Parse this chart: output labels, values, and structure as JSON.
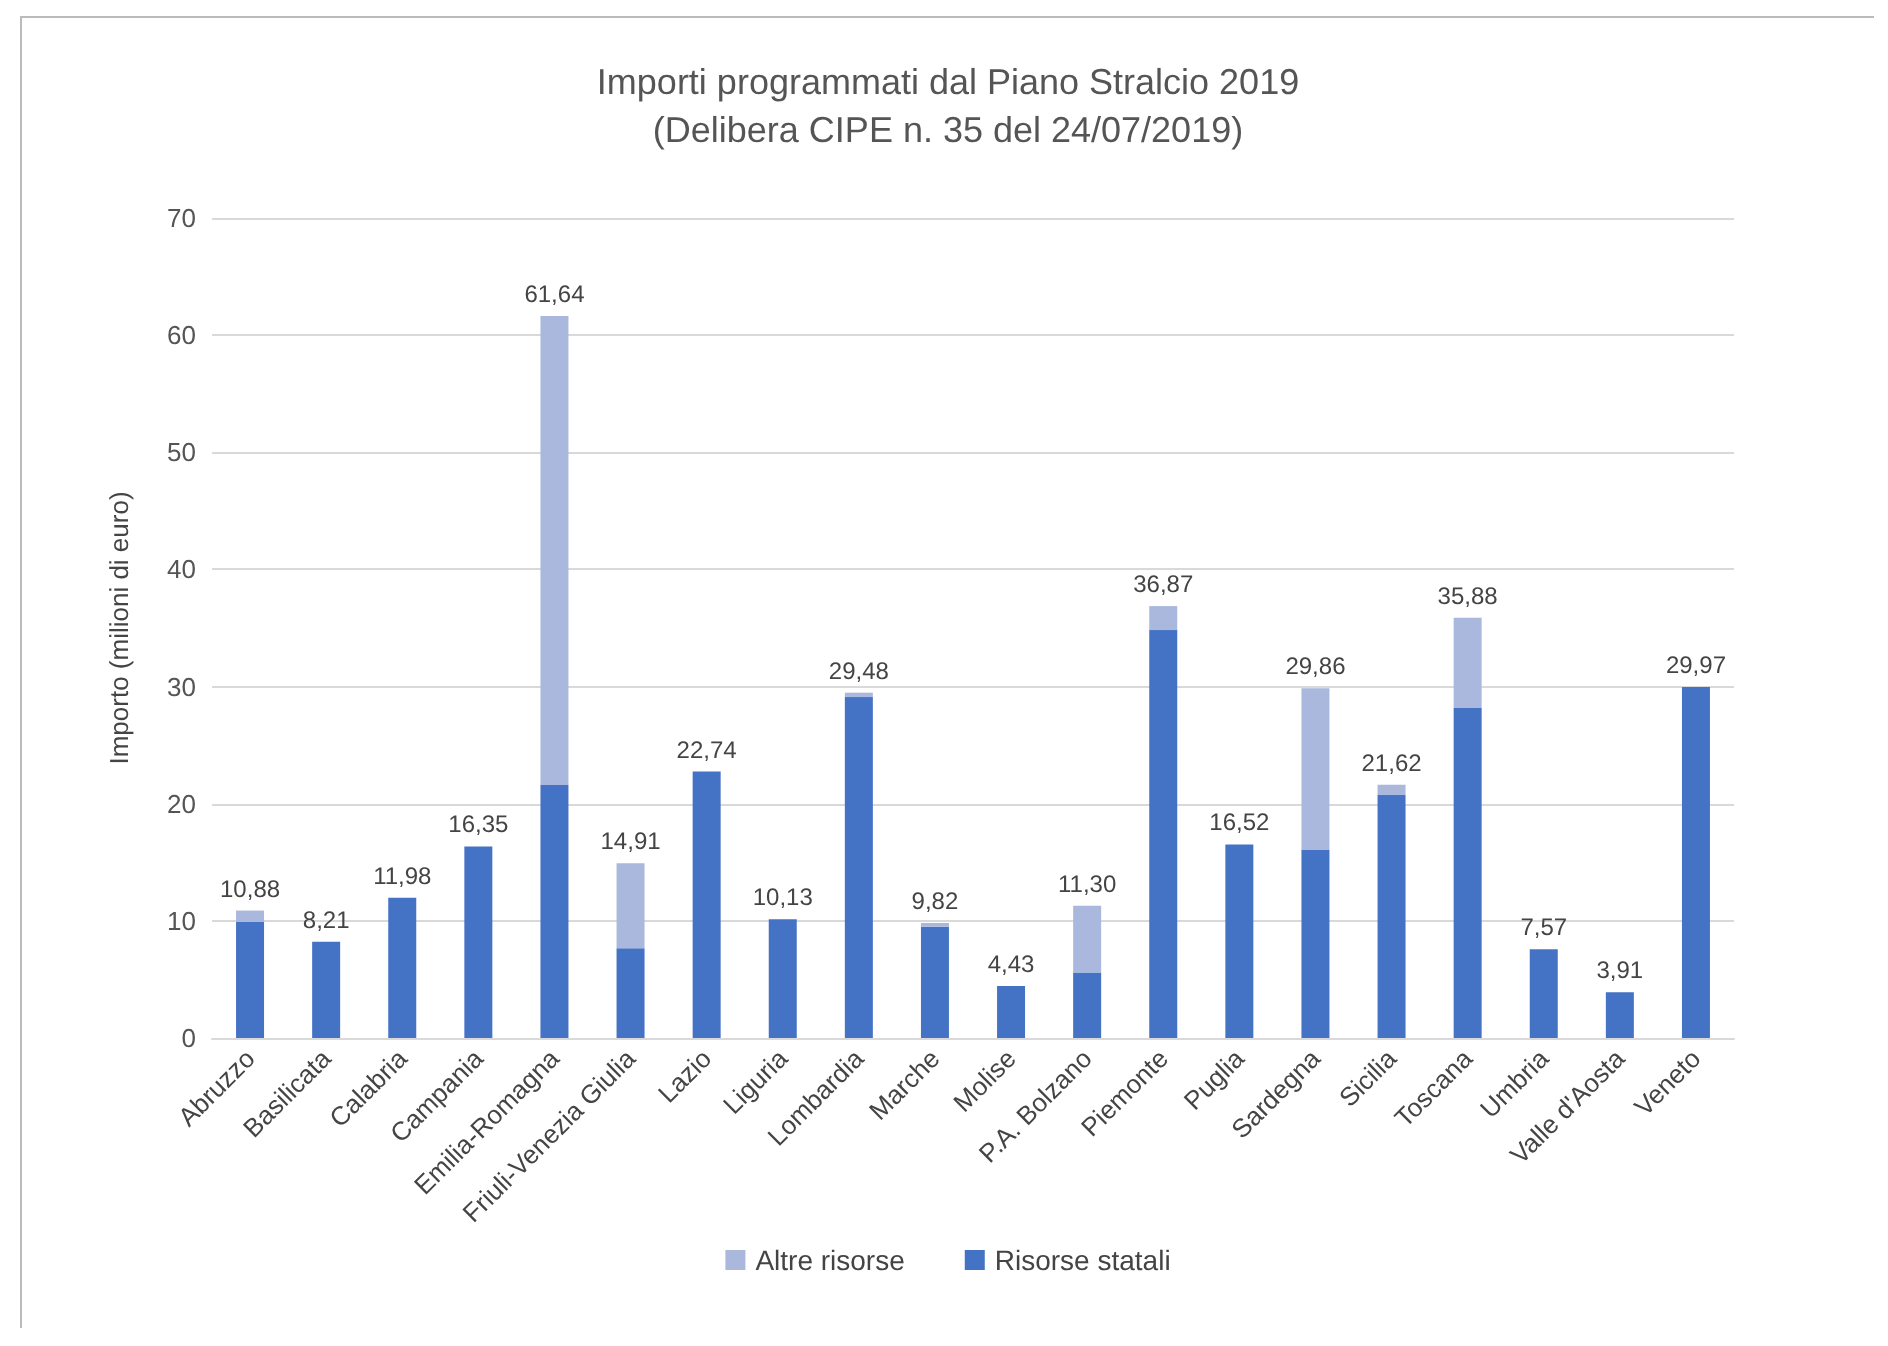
{
  "chart_data": {
    "type": "bar",
    "title": "Importi programmati dal Piano Stralcio 2019",
    "subtitle": "(Delibera CIPE n. 35 del 24/07/2019)",
    "ylabel": "Importo (milioni di euro)",
    "categories": [
      "Abruzzo",
      "Basilicata",
      "Calabria",
      "Campania",
      "Emilia-Romagna",
      "Friuli-Venezia Giulia",
      "Lazio",
      "Liguria",
      "Lombardia",
      "Marche",
      "Molise",
      "P.A. Bolzano",
      "Piemonte",
      "Puglia",
      "Sardegna",
      "Sicilia",
      "Toscana",
      "Umbria",
      "Valle d'Aosta",
      "Veneto"
    ],
    "stacked": true,
    "series": [
      {
        "name": "Risorse statali",
        "color": "#4472c4",
        "values": [
          9.9,
          8.21,
          11.98,
          16.35,
          21.6,
          7.66,
          22.74,
          10.13,
          29.1,
          9.5,
          4.43,
          5.59,
          34.82,
          16.52,
          16.04,
          20.74,
          28.18,
          7.57,
          3.91,
          29.97
        ]
      },
      {
        "name": "Altre risorse",
        "color": "#a9b8dc",
        "values": [
          0.98,
          0,
          0,
          0,
          40.04,
          7.25,
          0,
          0,
          0.38,
          0.32,
          0,
          5.71,
          2.05,
          0,
          13.82,
          0.88,
          7.7,
          0,
          0,
          0
        ]
      }
    ],
    "totals": [
      "10,88",
      "8,21",
      "11,98",
      "16,35",
      "61,64",
      "14,91",
      "22,74",
      "10,13",
      "29,48",
      "9,82",
      "4,43",
      "11,30",
      "36,87",
      "16,52",
      "29,86",
      "21,62",
      "35,88",
      "7,57",
      "3,91",
      "29,97"
    ],
    "ylim": [
      0,
      70
    ],
    "yticks": [
      0,
      10,
      20,
      30,
      40,
      50,
      60,
      70
    ],
    "grid": "y",
    "legend": "bottom"
  }
}
